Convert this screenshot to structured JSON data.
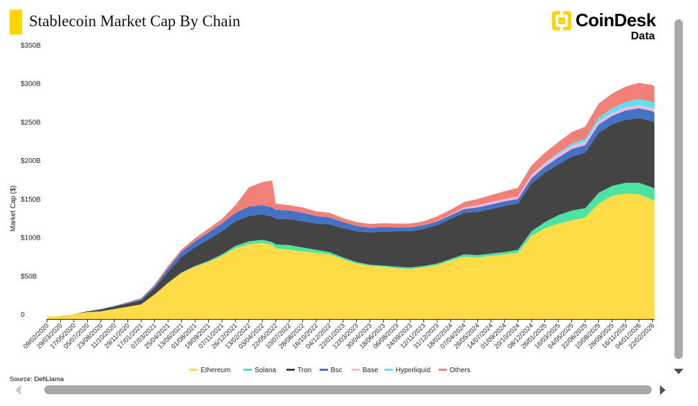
{
  "header": {
    "title": "Stablecoin Market Cap By Chain",
    "brand_name": "CoinDesk",
    "brand_sub": "Data"
  },
  "source": "Source: DefiLlama",
  "colors": {
    "accent": "#FFD600",
    "ethereum": "#FDDC48",
    "solana": "#4EE3A0",
    "tron": "#444444",
    "bsc": "#4472C4",
    "base": "#F7B6E0",
    "hyperliquid": "#5FE0EF",
    "others": "#F08078"
  },
  "chart_data": {
    "type": "area",
    "stacked": true,
    "title": "Stablecoin Market Cap By Chain",
    "xlabel": "",
    "ylabel": "Market Cap ($)",
    "ylim": [
      0,
      350
    ],
    "y_unit": "B",
    "y_ticks": [
      "0",
      "$50B",
      "$100B",
      "$150B",
      "$200B",
      "$250B",
      "$300B",
      "$350B"
    ],
    "x_tick_labels": [
      "09/02/2020",
      "29/03/2020",
      "17/05/2020",
      "05/07/2020",
      "23/08/2020",
      "11/10/2020",
      "29/11/2020",
      "17/01/2021",
      "07/03/2021",
      "25/04/2021",
      "13/06/2021",
      "01/08/2021",
      "19/09/2021",
      "07/11/2021",
      "26/12/2021",
      "13/02/2022",
      "03/04/2022",
      "22/05/2022",
      "10/07/2022",
      "28/08/2022",
      "16/10/2022",
      "04/12/2022",
      "22/01/2023",
      "12/03/2023",
      "30/04/2023",
      "18/06/2023",
      "06/08/2023",
      "24/09/2023",
      "12/11/2023",
      "31/12/2023",
      "18/02/2024",
      "07/04/2024",
      "26/05/2024",
      "14/07/2024",
      "01/09/2024",
      "20/10/2024",
      "08/12/2024",
      "26/01/2025",
      "16/03/2025",
      "04/05/2025",
      "22/06/2025",
      "10/08/2025",
      "28/09/2025",
      "16/11/2025",
      "04/01/2026",
      "22/02/2026"
    ],
    "x": [
      "2020-02-09",
      "2020-03-29",
      "2020-05-17",
      "2020-07-05",
      "2020-08-23",
      "2020-10-11",
      "2020-11-29",
      "2021-01-17",
      "2021-03-07",
      "2021-04-25",
      "2021-06-13",
      "2021-08-01",
      "2021-09-19",
      "2021-11-07",
      "2021-12-26",
      "2022-02-13",
      "2022-04-03",
      "2022-05-09",
      "2022-05-22",
      "2022-07-10",
      "2022-08-28",
      "2022-10-16",
      "2022-12-04",
      "2023-01-22",
      "2023-03-12",
      "2023-04-30",
      "2023-06-18",
      "2023-08-06",
      "2023-09-24",
      "2023-11-12",
      "2023-12-31",
      "2024-02-18",
      "2024-04-07",
      "2024-05-26",
      "2024-07-14",
      "2024-09-01",
      "2024-10-20",
      "2024-12-08",
      "2025-01-26",
      "2025-03-16",
      "2025-05-04",
      "2025-06-22",
      "2025-08-10",
      "2025-09-28",
      "2025-11-16",
      "2026-01-04",
      "2026-02-22",
      "2026-03-01"
    ],
    "series": [
      {
        "name": "Ethereum",
        "values": [
          3,
          4,
          6,
          9,
          10,
          13,
          16,
          19,
          32,
          47,
          60,
          68,
          74,
          82,
          92,
          97,
          99,
          96,
          92,
          90,
          88,
          86,
          84,
          78,
          72,
          69,
          68,
          66,
          65,
          67,
          70,
          76,
          81,
          80,
          82,
          84,
          86,
          108,
          118,
          124,
          128,
          132,
          150,
          160,
          163,
          162,
          155,
          153
        ]
      },
      {
        "name": "Solana",
        "values": [
          0,
          0,
          0,
          0,
          0,
          0,
          0,
          0,
          0,
          0,
          0.5,
          1,
          1.5,
          2,
          3,
          4,
          4,
          4,
          5,
          6,
          5,
          4,
          3,
          2,
          2,
          1.5,
          1.5,
          2,
          2,
          2,
          2,
          2,
          3,
          3,
          3,
          3,
          4,
          6,
          8,
          11,
          13,
          12,
          14,
          13,
          14,
          15,
          16,
          16
        ]
      },
      {
        "name": "Tron",
        "values": [
          0,
          0,
          0,
          1,
          2,
          3,
          4,
          5,
          8,
          14,
          20,
          24,
          28,
          30,
          32,
          33,
          33,
          33,
          33,
          34,
          34,
          34,
          36,
          38,
          40,
          42,
          44,
          46,
          47,
          48,
          50,
          52,
          54,
          56,
          58,
          60,
          60,
          62,
          64,
          66,
          70,
          72,
          78,
          80,
          82,
          84,
          86,
          86
        ]
      },
      {
        "name": "Bsc",
        "values": [
          0,
          0,
          0,
          0,
          1,
          1,
          1,
          2,
          3,
          5,
          7,
          8,
          9,
          10,
          11,
          12,
          12,
          12,
          12,
          11,
          11,
          10,
          9,
          8,
          7,
          6,
          6,
          5,
          5,
          5,
          5,
          5,
          5,
          6,
          6,
          6,
          6,
          7,
          8,
          9,
          10,
          10,
          11,
          11,
          12,
          13,
          13,
          13
        ]
      },
      {
        "name": "Base",
        "values": [
          0,
          0,
          0,
          0,
          0,
          0,
          0,
          0,
          0,
          0,
          0,
          0,
          0,
          0,
          0,
          0,
          0,
          0,
          0,
          0,
          0,
          0,
          0,
          0,
          0,
          0,
          0,
          0,
          0,
          0,
          0.5,
          1,
          2,
          3,
          3,
          3,
          3.5,
          4,
          4,
          4,
          4,
          4,
          4,
          4,
          4,
          4,
          4,
          4
        ]
      },
      {
        "name": "Hyperliquid",
        "values": [
          0,
          0,
          0,
          0,
          0,
          0,
          0,
          0,
          0,
          0,
          0,
          0,
          0,
          0,
          0,
          0,
          0,
          0,
          0,
          0,
          0,
          0,
          0,
          0,
          0,
          0,
          0,
          0,
          0,
          0,
          0,
          0,
          0,
          0,
          0,
          0,
          0,
          0.5,
          1,
          2,
          3,
          4,
          5,
          6,
          7,
          8,
          8,
          8
        ]
      },
      {
        "name": "Others",
        "values": [
          0,
          0,
          0,
          0,
          0,
          0,
          1,
          1,
          2,
          3,
          3,
          4,
          5,
          6,
          10,
          25,
          30,
          35,
          8,
          7,
          7,
          6,
          6,
          5,
          5,
          5,
          5,
          5,
          5,
          5,
          6,
          6,
          7,
          8,
          9,
          10,
          11,
          12,
          13,
          14,
          15,
          16,
          18,
          19,
          20,
          21,
          22,
          22
        ]
      }
    ],
    "legend_position": "bottom",
    "grid": false
  }
}
